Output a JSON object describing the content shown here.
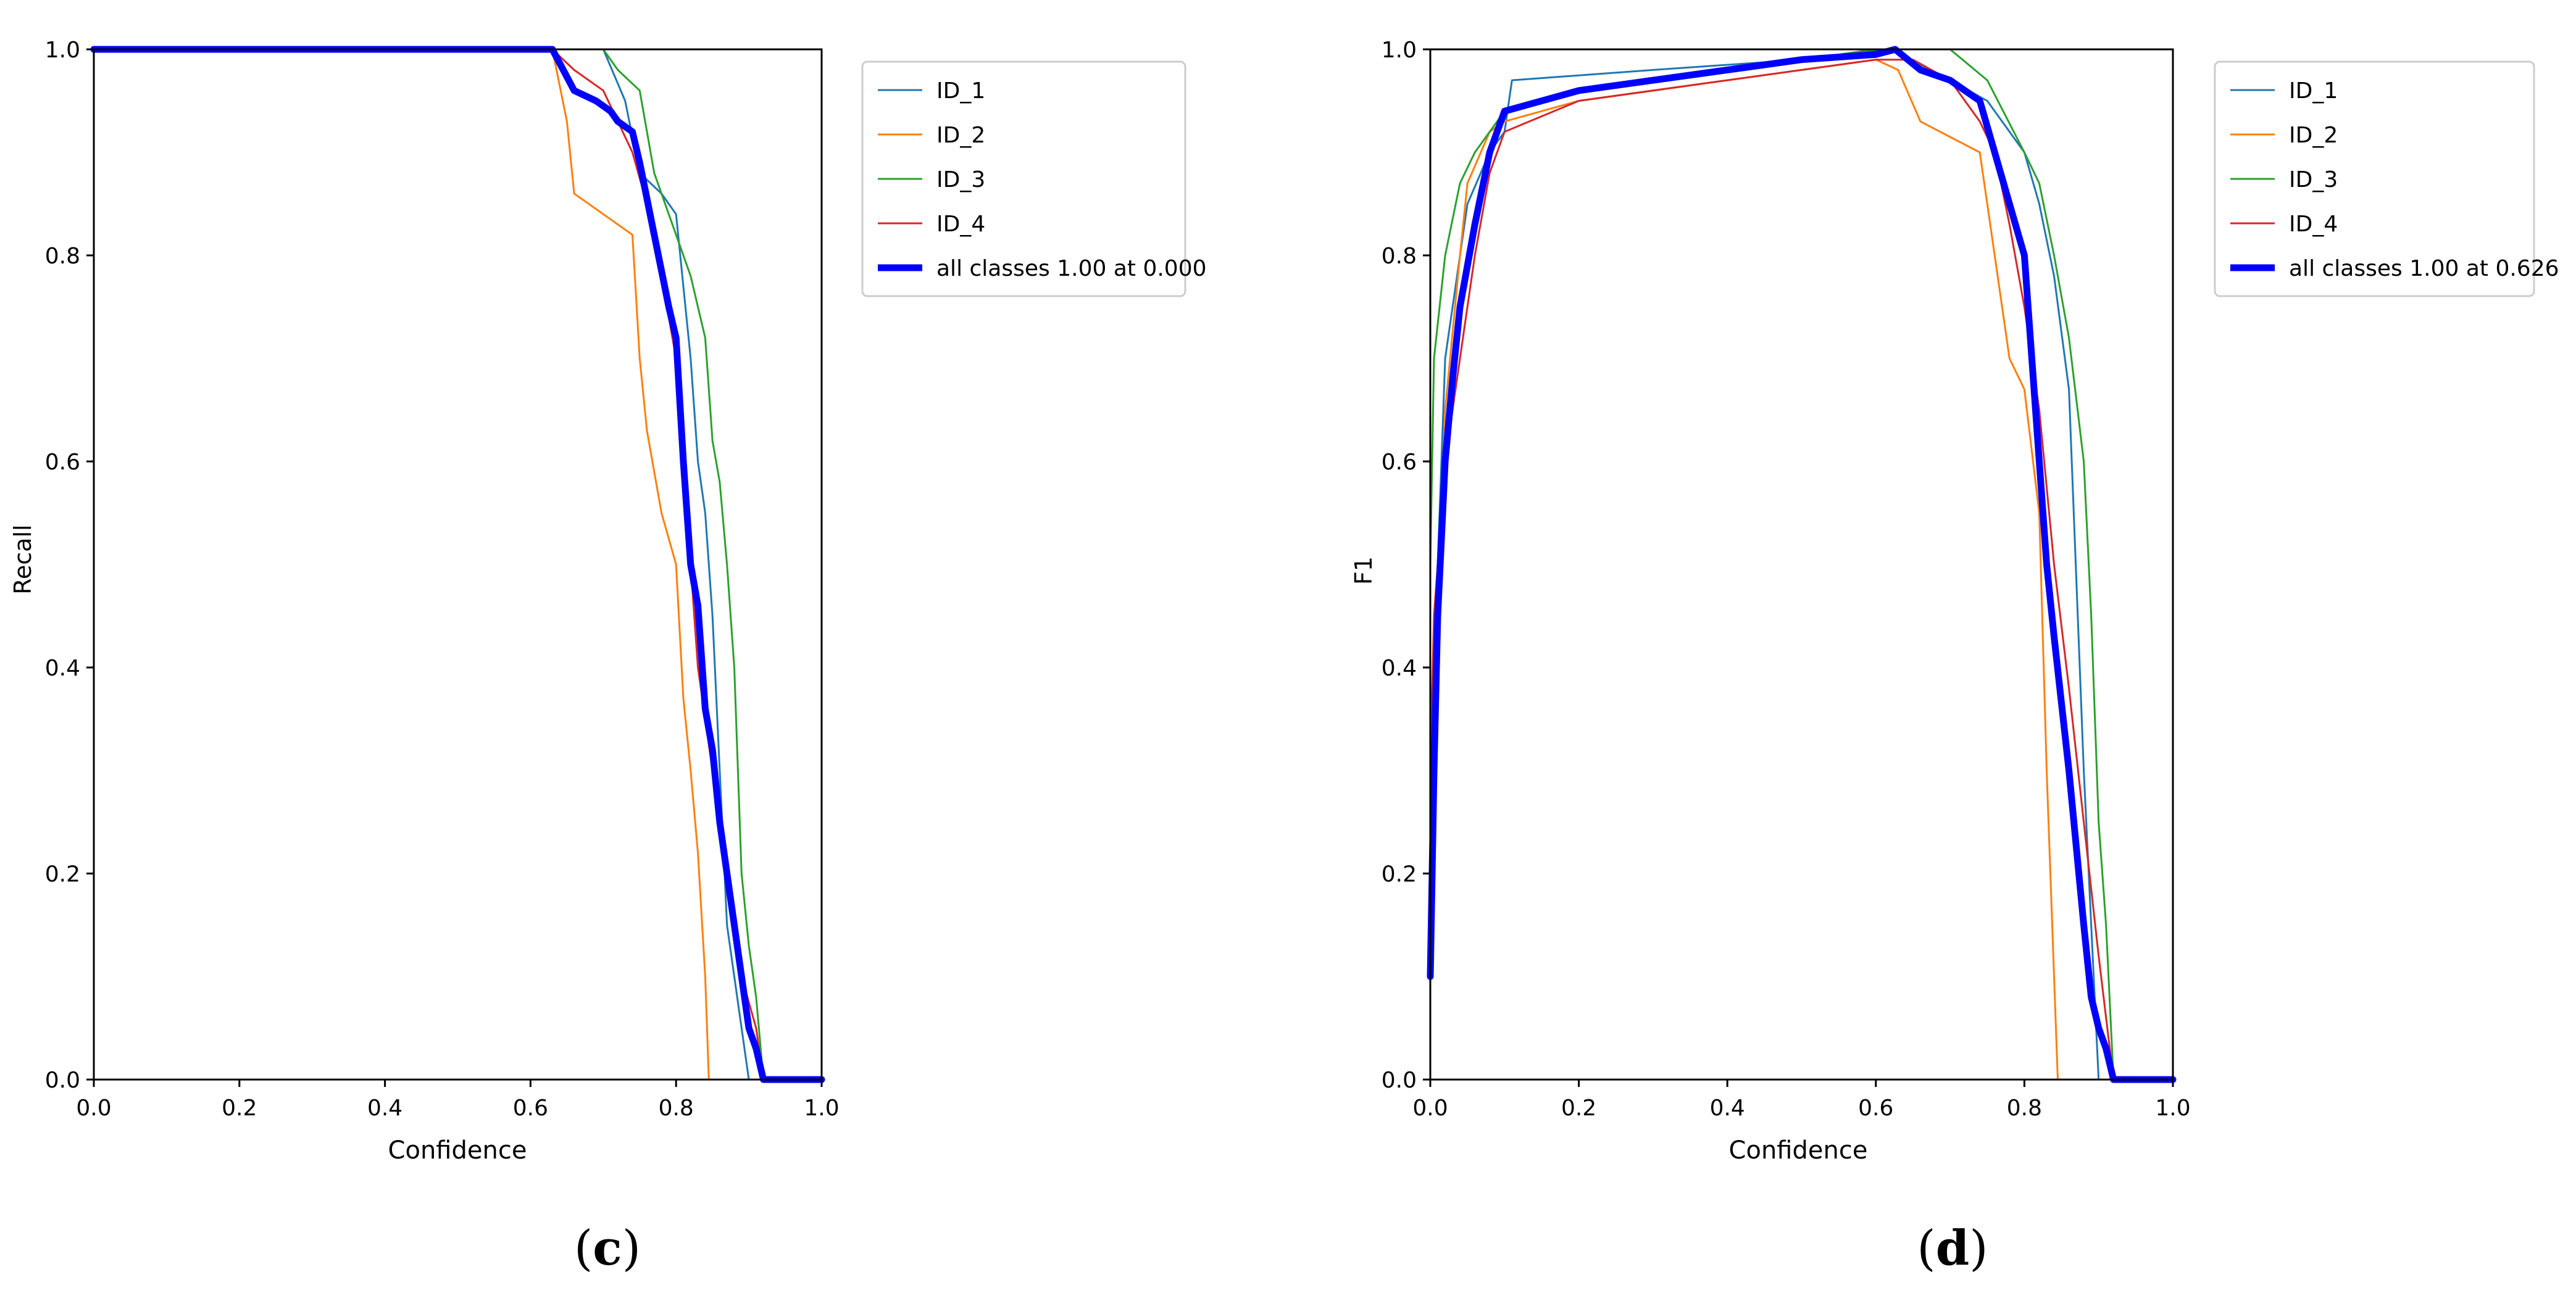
{
  "chart_data": [
    {
      "panel_label": "(c)",
      "caption": {
        "open": "(",
        "letter": "c",
        "close": ")"
      },
      "type": "line",
      "xlabel": "Confidence",
      "ylabel": "Recall",
      "xlim": [
        0.0,
        1.0
      ],
      "ylim": [
        0.0,
        1.0
      ],
      "xticks": [
        "0.0",
        "0.2",
        "0.4",
        "0.6",
        "0.8",
        "1.0"
      ],
      "yticks": [
        "0.0",
        "0.2",
        "0.4",
        "0.6",
        "0.8",
        "1.0"
      ],
      "grid": false,
      "legend_position": "outside upper right",
      "series": [
        {
          "name": "ID_1",
          "color": "#1f77b4",
          "width": "thin",
          "x": [
            0,
            0.7,
            0.73,
            0.75,
            0.78,
            0.8,
            0.82,
            0.83,
            0.84,
            0.85,
            0.86,
            0.87,
            0.88,
            0.89,
            0.9,
            1.0
          ],
          "y": [
            1.0,
            1.0,
            0.95,
            0.88,
            0.86,
            0.84,
            0.7,
            0.6,
            0.55,
            0.45,
            0.3,
            0.15,
            0.1,
            0.05,
            0.0,
            0.0
          ]
        },
        {
          "name": "ID_2",
          "color": "#ff7f0e",
          "width": "thin",
          "x": [
            0,
            0.63,
            0.65,
            0.66,
            0.7,
            0.74,
            0.75,
            0.76,
            0.78,
            0.8,
            0.81,
            0.82,
            0.83,
            0.84,
            0.845,
            0.85,
            1.0
          ],
          "y": [
            1.0,
            1.0,
            0.93,
            0.86,
            0.84,
            0.82,
            0.7,
            0.63,
            0.55,
            0.5,
            0.37,
            0.3,
            0.22,
            0.1,
            0.0,
            0.0,
            0.0
          ]
        },
        {
          "name": "ID_3",
          "color": "#2ca02c",
          "width": "thin",
          "x": [
            0,
            0.7,
            0.72,
            0.75,
            0.77,
            0.8,
            0.82,
            0.84,
            0.85,
            0.86,
            0.87,
            0.88,
            0.89,
            0.9,
            0.91,
            0.92,
            1.0
          ],
          "y": [
            1.0,
            1.0,
            0.98,
            0.96,
            0.88,
            0.82,
            0.78,
            0.72,
            0.62,
            0.58,
            0.5,
            0.4,
            0.2,
            0.13,
            0.08,
            0.0,
            0.0
          ]
        },
        {
          "name": "ID_4",
          "color": "#d62728",
          "width": "thin",
          "x": [
            0,
            0.63,
            0.66,
            0.7,
            0.74,
            0.76,
            0.78,
            0.8,
            0.81,
            0.82,
            0.83,
            0.85,
            0.87,
            0.89,
            0.91,
            0.92,
            1.0
          ],
          "y": [
            1.0,
            1.0,
            0.98,
            0.96,
            0.9,
            0.85,
            0.78,
            0.7,
            0.6,
            0.5,
            0.4,
            0.3,
            0.2,
            0.1,
            0.05,
            0.0,
            0.0
          ]
        },
        {
          "name": "all classes 1.00 at 0.000",
          "color": "#0000ff",
          "width": "thick",
          "x": [
            0,
            0.63,
            0.66,
            0.69,
            0.71,
            0.72,
            0.74,
            0.75,
            0.77,
            0.79,
            0.8,
            0.81,
            0.82,
            0.83,
            0.84,
            0.85,
            0.86,
            0.87,
            0.88,
            0.89,
            0.9,
            0.91,
            0.92,
            1.0
          ],
          "y": [
            1.0,
            1.0,
            0.96,
            0.95,
            0.94,
            0.93,
            0.92,
            0.89,
            0.82,
            0.75,
            0.72,
            0.6,
            0.5,
            0.46,
            0.36,
            0.32,
            0.25,
            0.2,
            0.15,
            0.1,
            0.05,
            0.03,
            0.0,
            0.0
          ]
        }
      ]
    },
    {
      "panel_label": "(d)",
      "caption": {
        "open": "(",
        "letter": "d",
        "close": ")"
      },
      "type": "line",
      "xlabel": "Confidence",
      "ylabel": "F1",
      "xlim": [
        0.0,
        1.0
      ],
      "ylim": [
        0.0,
        1.0
      ],
      "xticks": [
        "0.0",
        "0.2",
        "0.4",
        "0.6",
        "0.8",
        "1.0"
      ],
      "yticks": [
        "0.0",
        "0.2",
        "0.4",
        "0.6",
        "0.8",
        "1.0"
      ],
      "grid": false,
      "legend_position": "outside upper right",
      "series": [
        {
          "name": "ID_1",
          "color": "#1f77b4",
          "width": "thin",
          "x": [
            0,
            0.005,
            0.02,
            0.05,
            0.08,
            0.1,
            0.11,
            0.3,
            0.5,
            0.62,
            0.7,
            0.75,
            0.8,
            0.82,
            0.84,
            0.86,
            0.88,
            0.9,
            0.91,
            1.0
          ],
          "y": [
            0.1,
            0.4,
            0.7,
            0.85,
            0.9,
            0.92,
            0.97,
            0.98,
            0.99,
            1.0,
            0.97,
            0.95,
            0.9,
            0.85,
            0.78,
            0.67,
            0.3,
            0.0,
            0.0,
            0.0
          ]
        },
        {
          "name": "ID_2",
          "color": "#ff7f0e",
          "width": "thin",
          "x": [
            0,
            0.005,
            0.02,
            0.04,
            0.05,
            0.08,
            0.1,
            0.2,
            0.4,
            0.6,
            0.63,
            0.66,
            0.74,
            0.76,
            0.78,
            0.8,
            0.82,
            0.83,
            0.84,
            0.845,
            1.0
          ],
          "y": [
            0.1,
            0.35,
            0.65,
            0.8,
            0.87,
            0.92,
            0.93,
            0.95,
            0.97,
            0.99,
            0.98,
            0.93,
            0.9,
            0.8,
            0.7,
            0.67,
            0.55,
            0.3,
            0.1,
            0.0,
            0.0
          ]
        },
        {
          "name": "ID_3",
          "color": "#2ca02c",
          "width": "thin",
          "x": [
            0,
            0.005,
            0.02,
            0.04,
            0.06,
            0.1,
            0.2,
            0.4,
            0.6,
            0.7,
            0.75,
            0.8,
            0.82,
            0.84,
            0.86,
            0.88,
            0.89,
            0.9,
            0.91,
            0.92,
            1.0
          ],
          "y": [
            0.5,
            0.7,
            0.8,
            0.87,
            0.9,
            0.94,
            0.96,
            0.98,
            1.0,
            1.0,
            0.97,
            0.9,
            0.87,
            0.8,
            0.72,
            0.6,
            0.45,
            0.25,
            0.15,
            0.0,
            0.0
          ]
        },
        {
          "name": "ID_4",
          "color": "#d62728",
          "width": "thin",
          "x": [
            0,
            0.005,
            0.02,
            0.04,
            0.06,
            0.08,
            0.1,
            0.2,
            0.4,
            0.6,
            0.65,
            0.7,
            0.74,
            0.76,
            0.78,
            0.8,
            0.82,
            0.84,
            0.86,
            0.88,
            0.9,
            0.92,
            1.0
          ],
          "y": [
            0.3,
            0.45,
            0.6,
            0.7,
            0.8,
            0.88,
            0.92,
            0.95,
            0.97,
            0.99,
            0.99,
            0.97,
            0.93,
            0.9,
            0.83,
            0.75,
            0.65,
            0.5,
            0.38,
            0.25,
            0.12,
            0.0,
            0.0
          ]
        },
        {
          "name": "all classes 1.00 at 0.626",
          "color": "#0000ff",
          "width": "thick",
          "x": [
            0,
            0.005,
            0.01,
            0.02,
            0.03,
            0.04,
            0.06,
            0.08,
            0.1,
            0.15,
            0.2,
            0.3,
            0.4,
            0.5,
            0.6,
            0.626,
            0.66,
            0.7,
            0.74,
            0.76,
            0.78,
            0.8,
            0.82,
            0.83,
            0.84,
            0.86,
            0.88,
            0.89,
            0.9,
            0.91,
            0.92,
            1.0
          ],
          "y": [
            0.1,
            0.3,
            0.45,
            0.6,
            0.68,
            0.75,
            0.83,
            0.9,
            0.94,
            0.95,
            0.96,
            0.97,
            0.98,
            0.99,
            0.995,
            1.0,
            0.98,
            0.97,
            0.95,
            0.9,
            0.85,
            0.8,
            0.6,
            0.5,
            0.43,
            0.3,
            0.15,
            0.08,
            0.05,
            0.03,
            0.0,
            0.0
          ]
        }
      ]
    }
  ]
}
